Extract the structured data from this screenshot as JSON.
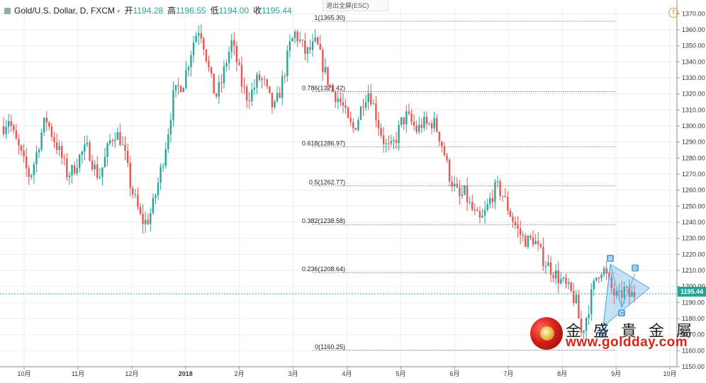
{
  "header": {
    "symbol": "Gold/U.S. Dollar, D, FXCM",
    "dropdown": "▾",
    "open_label": "开",
    "open": "1194.28",
    "high_label": "高",
    "high": "1196.55",
    "low_label": "低",
    "low": "1194.00",
    "close_label": "收",
    "close": "1195.44"
  },
  "esc_button": "退出全屏(ESC)",
  "warning_icon": "!",
  "last_price_tag": "1195.44",
  "logo": {
    "chinese": "金 盛 貴 金 屬",
    "url": "www.goldday.com"
  },
  "colors": {
    "up": "#26a69a",
    "down": "#ef5350",
    "pattern_fill": "#5aa9e6",
    "grid": "#eeeeee",
    "price_line": "#26a69a"
  },
  "chart_data": {
    "type": "candlestick",
    "title": "Gold/U.S. Dollar, D, FXCM",
    "ylim": [
      1150,
      1375
    ],
    "y_ticks": [
      1150,
      1160,
      1170,
      1180,
      1190,
      1200,
      1210,
      1220,
      1230,
      1240,
      1250,
      1260,
      1270,
      1280,
      1290,
      1300,
      1310,
      1320,
      1330,
      1340,
      1350,
      1360,
      1370
    ],
    "x_ticks": [
      "10月",
      "11月",
      "12月",
      "2018",
      "2月",
      "3月",
      "4月",
      "5月",
      "6月",
      "7月",
      "8月",
      "9月",
      "10月"
    ],
    "last_price": 1195.44,
    "fibonacci": [
      {
        "label": "1(1365.30)",
        "value": 1365.3
      },
      {
        "label": "0.786(1321.42)",
        "value": 1321.42
      },
      {
        "label": "0.618(1286.97)",
        "value": 1286.97
      },
      {
        "label": "0.5(1262.77)",
        "value": 1262.77
      },
      {
        "label": "0.382(1238.58)",
        "value": 1238.58
      },
      {
        "label": "0.236(1208.64)",
        "value": 1208.64
      },
      {
        "label": "0(1160.25)",
        "value": 1160.25
      }
    ],
    "pattern_points": [
      {
        "label": "A",
        "value": 1175
      },
      {
        "label": "B",
        "value": 1214
      },
      {
        "label": "C",
        "value": 1187
      },
      {
        "label": "D",
        "value": 1208
      }
    ],
    "price_path": [
      1300,
      1305,
      1293,
      1285,
      1275,
      1268,
      1280,
      1294,
      1305,
      1296,
      1288,
      1280,
      1270,
      1272,
      1279,
      1284,
      1286,
      1275,
      1268,
      1278,
      1290,
      1296,
      1292,
      1280,
      1262,
      1252,
      1241,
      1240,
      1248,
      1262,
      1278,
      1296,
      1318,
      1324,
      1328,
      1342,
      1355,
      1362,
      1348,
      1330,
      1318,
      1326,
      1340,
      1352,
      1340,
      1325,
      1318,
      1322,
      1330,
      1328,
      1318,
      1310,
      1320,
      1334,
      1350,
      1358,
      1352,
      1345,
      1348,
      1352,
      1340,
      1330,
      1322,
      1318,
      1312,
      1302,
      1298,
      1306,
      1318,
      1322,
      1310,
      1298,
      1288,
      1285,
      1292,
      1302,
      1306,
      1302,
      1297,
      1302,
      1300,
      1303,
      1296,
      1285,
      1270,
      1262,
      1255,
      1258,
      1250,
      1244,
      1240,
      1247,
      1256,
      1262,
      1258,
      1250,
      1242,
      1235,
      1230,
      1228,
      1230,
      1222,
      1216,
      1212,
      1208,
      1204,
      1200,
      1196,
      1190,
      1170,
      1182,
      1196,
      1208,
      1212,
      1204,
      1196,
      1192,
      1198,
      1194,
      1195.44
    ]
  }
}
